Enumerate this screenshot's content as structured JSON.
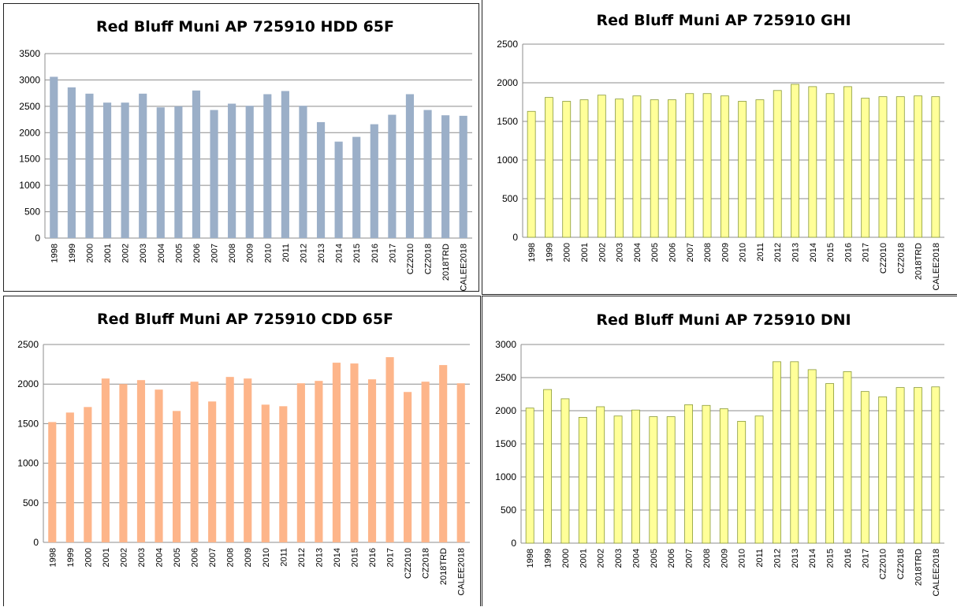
{
  "chart_data": [
    {
      "type": "bar",
      "title": "Red Bluff Muni AP 725910  HDD 65F",
      "xlabel": "",
      "ylabel": "",
      "ylim": [
        0,
        3500
      ],
      "yticks": [
        "0",
        "500",
        "1000",
        "1500",
        "2000",
        "2500",
        "3000",
        "3500"
      ],
      "grid": true,
      "legend": "none",
      "color": "#9bafc8",
      "categories": [
        "1998",
        "1999",
        "2000",
        "2001",
        "2002",
        "2003",
        "2004",
        "2005",
        "2006",
        "2007",
        "2008",
        "2009",
        "2010",
        "2011",
        "2012",
        "2013",
        "2014",
        "2015",
        "2016",
        "2017",
        "CZ2010",
        "CZ2018",
        "2018TRD",
        "CALEE2018"
      ],
      "values": [
        3060,
        2860,
        2740,
        2570,
        2570,
        2740,
        2480,
        2500,
        2800,
        2430,
        2550,
        2510,
        2730,
        2790,
        2510,
        2200,
        1830,
        1920,
        2160,
        2340,
        2730,
        2430,
        2330,
        2320
      ]
    },
    {
      "type": "bar",
      "title": "Red Bluff Muni AP 725910  GHI",
      "xlabel": "",
      "ylabel": "",
      "ylim": [
        0,
        2500
      ],
      "yticks": [
        "0",
        "500",
        "1000",
        "1500",
        "2000",
        "2500"
      ],
      "grid": true,
      "legend": "none",
      "color": "#ffff99",
      "categories": [
        "1998",
        "1999",
        "2000",
        "2001",
        "2002",
        "2003",
        "2004",
        "2005",
        "2006",
        "2007",
        "2008",
        "2009",
        "2010",
        "2011",
        "2012",
        "2013",
        "2014",
        "2015",
        "2016",
        "2017",
        "CZ2010",
        "CZ2018",
        "2018TRD",
        "CALEE2018"
      ],
      "values": [
        1630,
        1810,
        1760,
        1780,
        1840,
        1790,
        1830,
        1780,
        1780,
        1860,
        1860,
        1830,
        1760,
        1780,
        1900,
        1980,
        1950,
        1860,
        1950,
        1800,
        1820,
        1820,
        1830,
        1820
      ]
    },
    {
      "type": "bar",
      "title": "Red Bluff Muni AP 725910  CDD 65F",
      "xlabel": "",
      "ylabel": "",
      "ylim": [
        0,
        2500
      ],
      "yticks": [
        "0",
        "500",
        "1000",
        "1500",
        "2000",
        "2500"
      ],
      "grid": true,
      "legend": "none",
      "color": "#fdb58a",
      "categories": [
        "1998",
        "1999",
        "2000",
        "2001",
        "2002",
        "2003",
        "2004",
        "2005",
        "2006",
        "2007",
        "2008",
        "2009",
        "2010",
        "2011",
        "2012",
        "2013",
        "2014",
        "2015",
        "2016",
        "2017",
        "CZ2010",
        "CZ2018",
        "2018TRD",
        "CALEE2018"
      ],
      "values": [
        1520,
        1640,
        1710,
        2070,
        2000,
        2050,
        1930,
        1660,
        2030,
        1780,
        2090,
        2070,
        1740,
        1720,
        2010,
        2040,
        2270,
        2260,
        2060,
        2340,
        1900,
        2030,
        2240,
        2010
      ]
    },
    {
      "type": "bar",
      "title": "Red Bluff Muni AP 725910  DNI",
      "xlabel": "",
      "ylabel": "",
      "ylim": [
        0,
        3000
      ],
      "yticks": [
        "0",
        "500",
        "1000",
        "1500",
        "2000",
        "2500",
        "3000"
      ],
      "grid": true,
      "legend": "none",
      "color": "#ffff99",
      "categories": [
        "1998",
        "1999",
        "2000",
        "2001",
        "2002",
        "2003",
        "2004",
        "2005",
        "2006",
        "2007",
        "2008",
        "2009",
        "2010",
        "2011",
        "2012",
        "2013",
        "2014",
        "2015",
        "2016",
        "2017",
        "CZ2010",
        "CZ2018",
        "2018TRD",
        "CALEE2018"
      ],
      "values": [
        2040,
        2320,
        2180,
        1900,
        2060,
        1920,
        2010,
        1910,
        1910,
        2090,
        2080,
        2030,
        1840,
        1920,
        2740,
        2740,
        2620,
        2410,
        2590,
        2290,
        2210,
        2350,
        2350,
        2360
      ]
    }
  ]
}
